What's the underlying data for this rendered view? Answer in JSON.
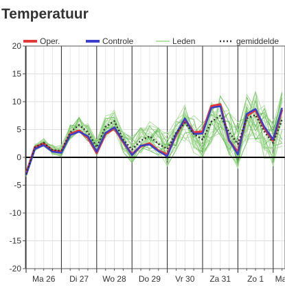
{
  "title": "Temperatuur",
  "chart_data": {
    "type": "line",
    "title": "Temperatuur",
    "xlabel": "",
    "ylabel": "",
    "ylim": [
      -20,
      20
    ],
    "yticks": [
      -20,
      -15,
      -10,
      -5,
      0,
      5,
      10,
      15,
      20
    ],
    "grid": true,
    "legend_position": "top",
    "day_labels": [
      "Ma 26",
      "Di 27",
      "Wo 28",
      "Do 29",
      "Vr 30",
      "Za 31",
      "Zo 1",
      "Ma"
    ],
    "x": [
      "Ma 26 00",
      "Ma 26 06",
      "Ma 26 12",
      "Ma 26 18",
      "Di 27 00",
      "Di 27 06",
      "Di 27 12",
      "Di 27 18",
      "Wo 28 00",
      "Wo 28 06",
      "Wo 28 12",
      "Wo 28 18",
      "Do 29 00",
      "Do 29 06",
      "Do 29 12",
      "Do 29 18",
      "Vr 30 00",
      "Vr 30 06",
      "Vr 30 12",
      "Vr 30 18",
      "Za 31 00",
      "Za 31 06",
      "Za 31 12",
      "Za 31 18",
      "Zo 1 00",
      "Zo 1 06",
      "Zo 1 12",
      "Zo 1 18",
      "Ma 00",
      "Ma 06"
    ],
    "legend": [
      {
        "name": "Oper.",
        "color": "#e03a3e",
        "style": "solid-thick"
      },
      {
        "name": "Controle",
        "color": "#3d3dcc",
        "style": "solid-thick"
      },
      {
        "name": "Leden",
        "color": "#9fd68f",
        "style": "solid-thin"
      },
      {
        "name": "gemiddelde",
        "color": "#333333",
        "style": "dotted"
      }
    ],
    "series": [
      {
        "name": "Oper.",
        "color": "#e03a3e",
        "values": [
          -3,
          1.8,
          2.5,
          1.2,
          1.0,
          4.2,
          4.8,
          3.5,
          0.8,
          4.2,
          5.2,
          2.8,
          0.5,
          2.0,
          2.5,
          1.2,
          0.5,
          4.0,
          6.8,
          4.5,
          4.6,
          9.2,
          9.5,
          3.0,
          0.9,
          7.5,
          8.5,
          5.2,
          3.0,
          8.6
        ]
      },
      {
        "name": "Controle",
        "color": "#3d3dcc",
        "values": [
          -3.2,
          1.5,
          2.2,
          1.0,
          0.8,
          4.0,
          4.6,
          3.8,
          1.0,
          4.4,
          5.4,
          2.9,
          0.4,
          2.1,
          2.3,
          1.1,
          0.2,
          4.2,
          7.0,
          4.2,
          4.3,
          8.9,
          9.2,
          3.1,
          0.5,
          7.8,
          8.7,
          5.5,
          3.2,
          8.9
        ]
      },
      {
        "name": "gemiddelde",
        "color": "#333333",
        "values": [
          -3,
          1.8,
          2.6,
          1.3,
          1.2,
          4.5,
          5.8,
          4.5,
          1.8,
          5.5,
          6.5,
          3.2,
          1.4,
          3.0,
          3.8,
          2.4,
          1.5,
          4.4,
          6.2,
          4.2,
          3.2,
          6.4,
          7.5,
          4.5,
          2.4,
          7.0,
          7.6,
          4.6,
          2.6,
          6.8
        ]
      }
    ]
  }
}
